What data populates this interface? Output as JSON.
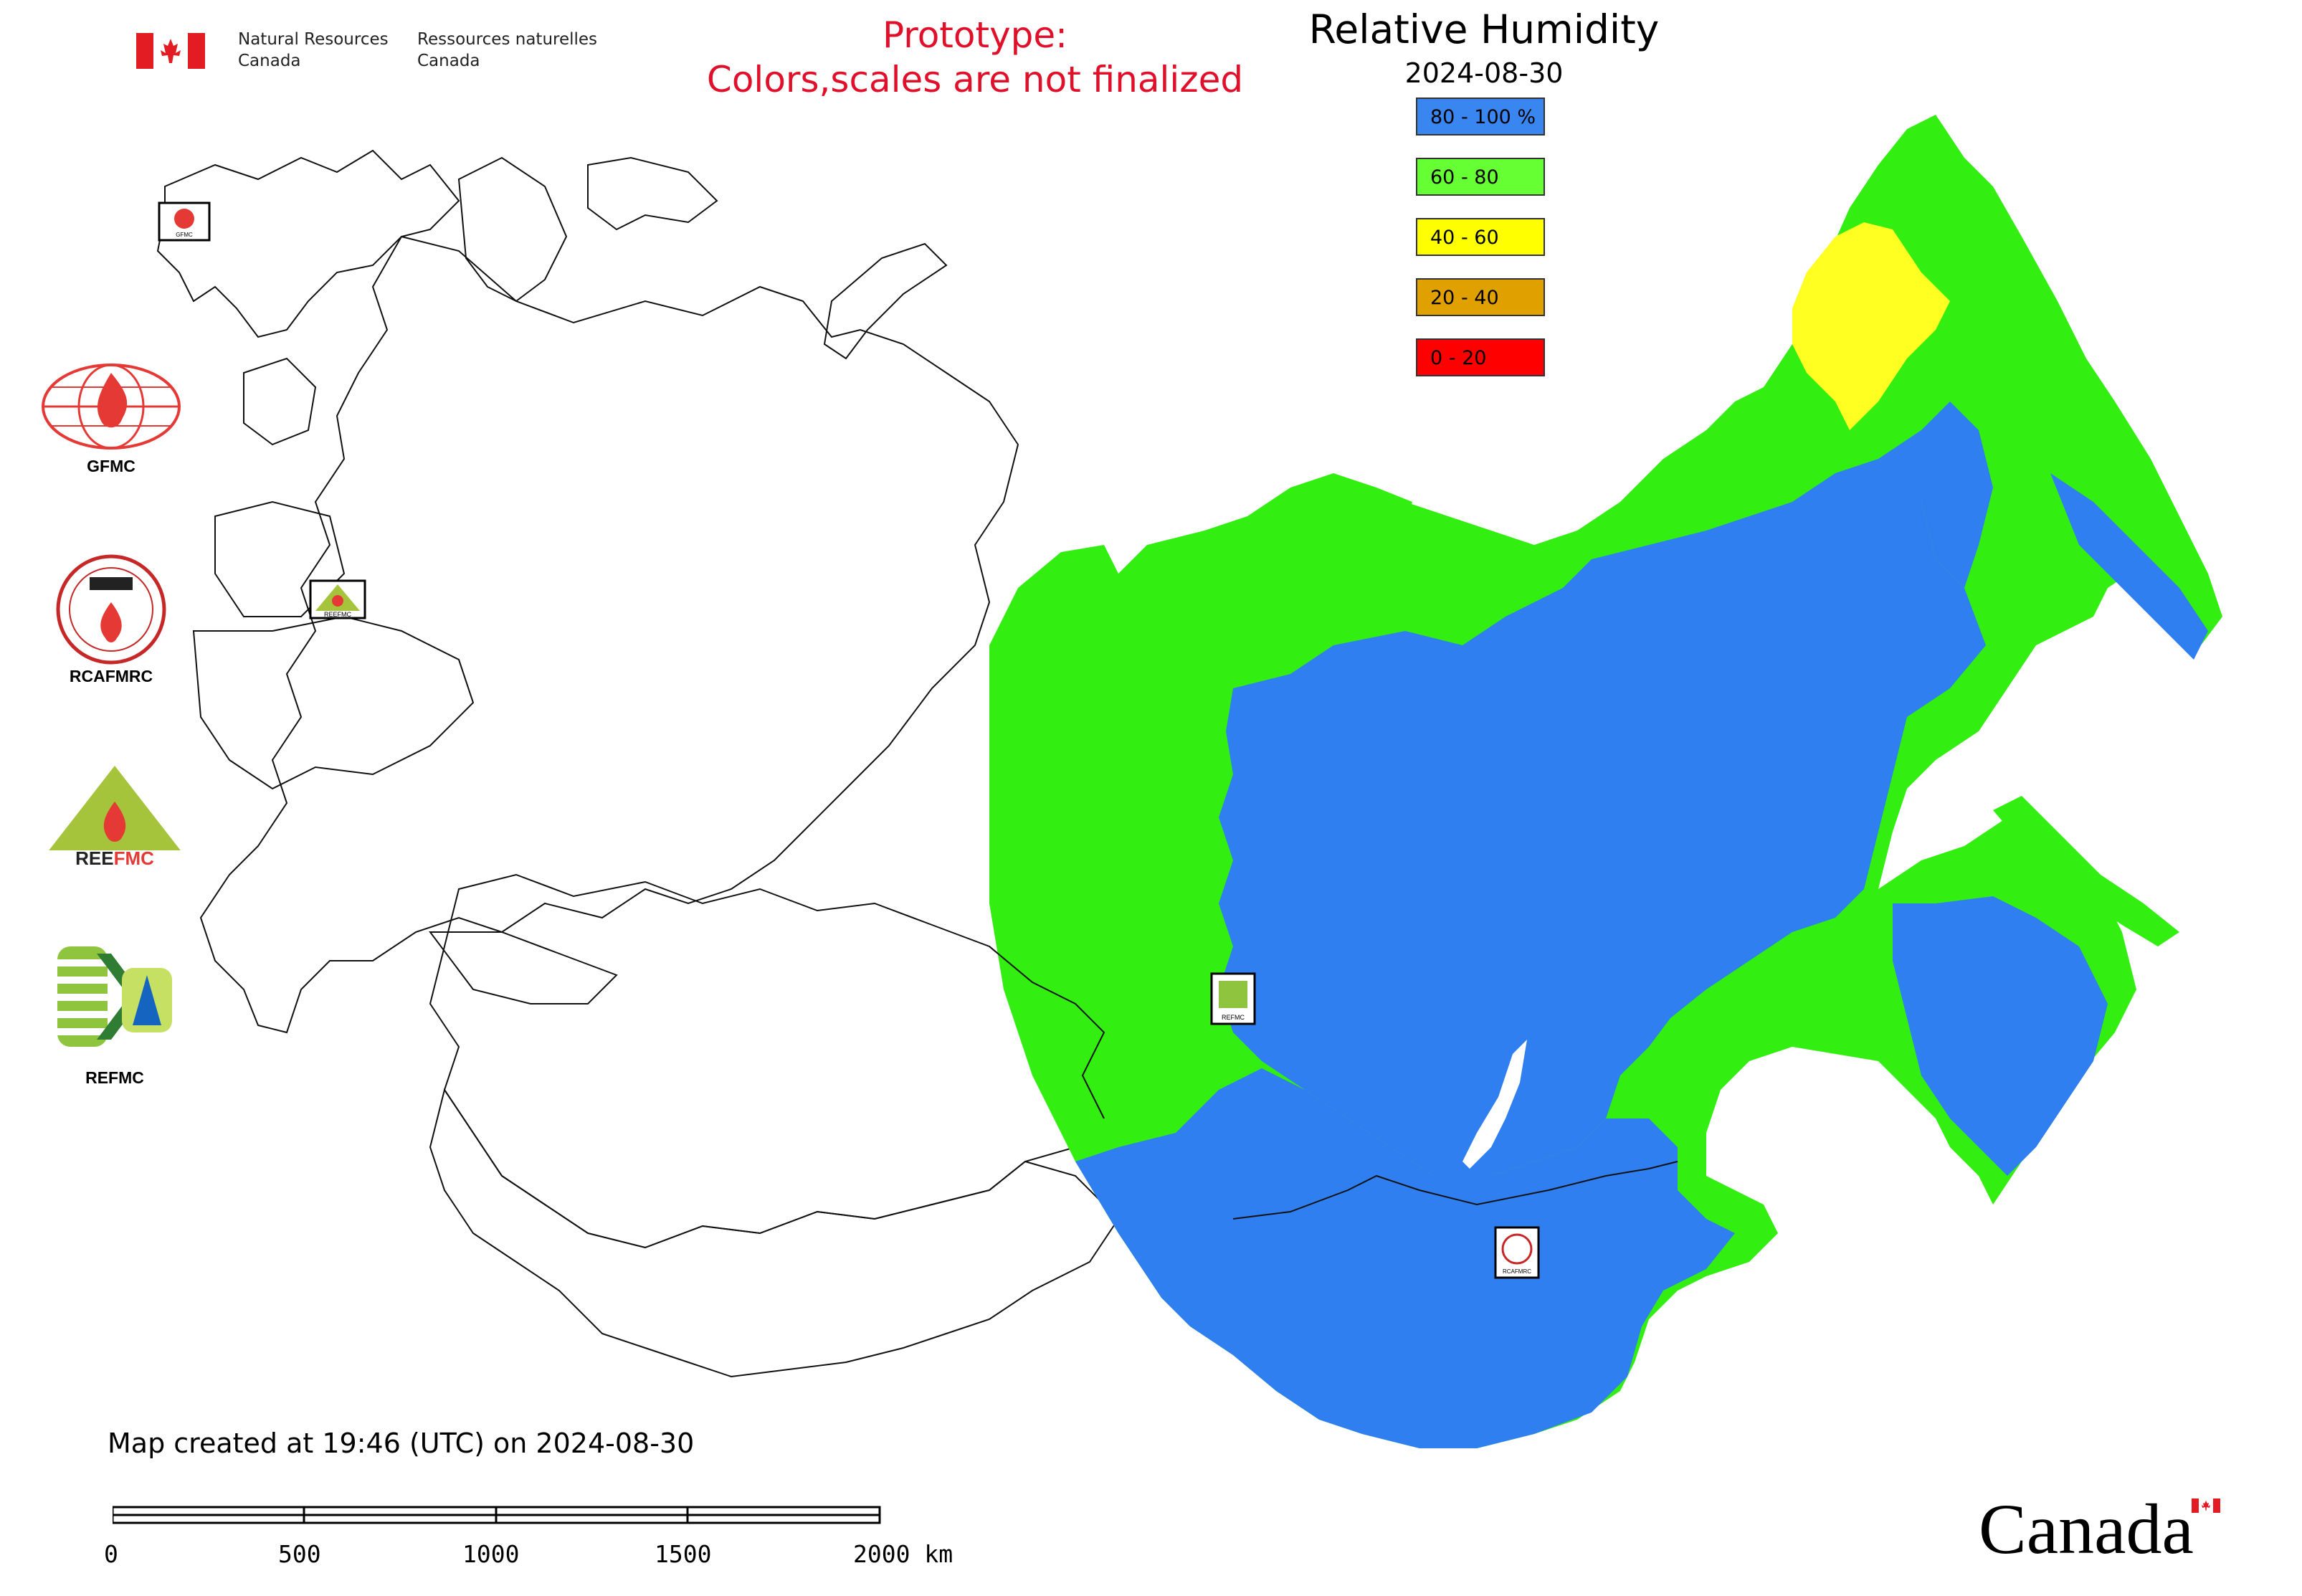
{
  "header": {
    "org_en_line1": "Natural Resources",
    "org_en_line2": "Canada",
    "org_fr_line1": "Ressources naturelles",
    "org_fr_line2": "Canada",
    "prototype_line1": "Prototype:",
    "prototype_line2": "Colors,scales are not finalized",
    "prototype_color": "#e0102a"
  },
  "map": {
    "title": "Relative Humidity",
    "date": "2024-08-30",
    "legend": [
      {
        "label": "80 - 100 %",
        "color": "#3a86f0"
      },
      {
        "label": "60 - 80",
        "color": "#66ff33"
      },
      {
        "label": "40 - 60",
        "color": "#ffff00"
      },
      {
        "label": "20 - 40",
        "color": "#e0a000"
      },
      {
        "label": "0 - 20",
        "color": "#ff0000"
      }
    ],
    "colors": {
      "humid": "#2f7ff0",
      "moderate": "#33ee11",
      "dry": "#ffff22",
      "outline": "#111111",
      "lake": "#ffffff"
    },
    "map_labels": {
      "refmc": "REFMC",
      "rcafmrc": "RCAFMRC",
      "gfmc": "GFMC",
      "reefmc": "REEFMC"
    }
  },
  "logos": [
    {
      "label": "GFMC",
      "icon": "gfmc-globe-flame-icon"
    },
    {
      "label": "RCAFMRC",
      "icon": "rcafmrc-seal-icon"
    },
    {
      "label": "REEFMC",
      "icon": "reefmc-triangle-icon"
    },
    {
      "label": "REFMC",
      "icon": "refmc-sigma-icon"
    }
  ],
  "footer": {
    "created": "Map created at 19:46 (UTC) on 2024-08-30",
    "scale": {
      "ticks": [
        "0",
        "500",
        "1000",
        "1500",
        "2000 km"
      ]
    },
    "wordmark": "Canada"
  }
}
